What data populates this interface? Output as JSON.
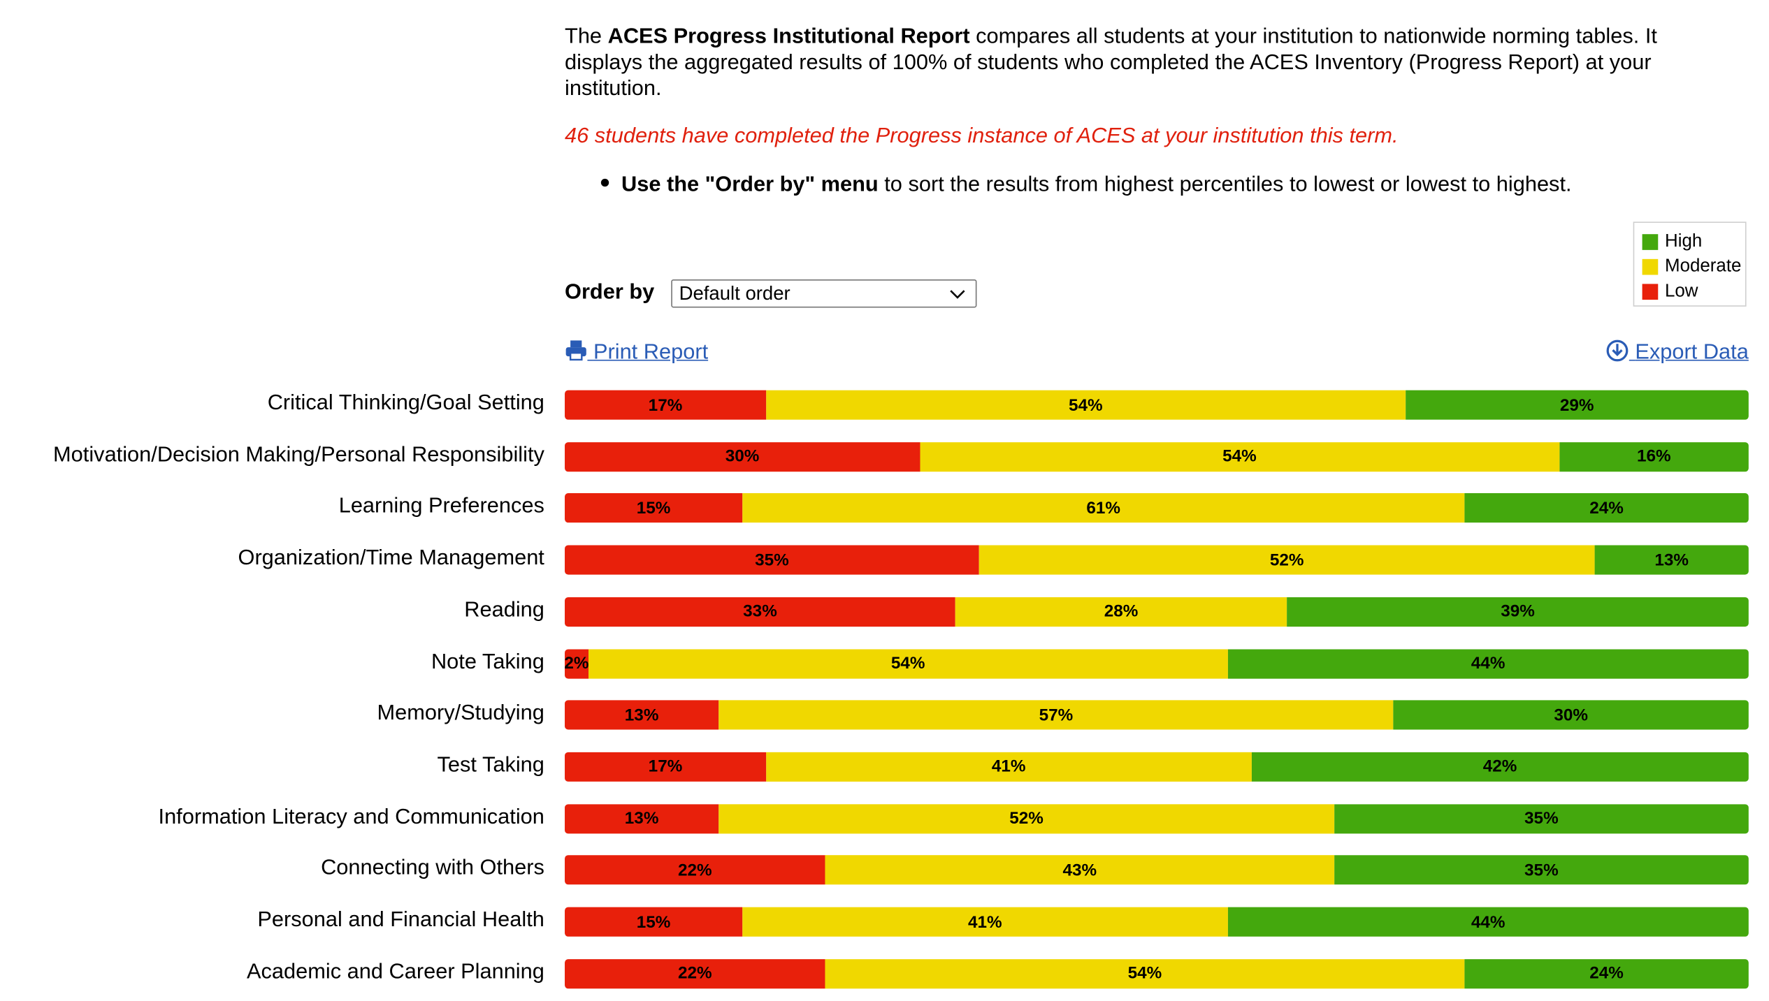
{
  "intro": {
    "prefix": "The ",
    "bold": "ACES Progress Institutional Report",
    "rest": " compares all students at your institution to nationwide norming tables. It displays the aggregated results of 100% of students who completed the ACES Inventory (Progress Report) at your institution."
  },
  "notice": "46 students have completed the Progress instance of ACES at your institution this term.",
  "tip": {
    "bold": "Use the \"Order by\" menu",
    "rest": " to sort the results from highest percentiles to lowest or lowest to highest."
  },
  "legend": {
    "items": [
      {
        "label": "High",
        "color": "#44a80d"
      },
      {
        "label": "Moderate",
        "color": "#f0d800"
      },
      {
        "label": "Low",
        "color": "#e8200b"
      }
    ]
  },
  "order_by": {
    "label": "Order by",
    "selected": "Default order"
  },
  "links": {
    "print": "Print Report",
    "export": "Export Data"
  },
  "chart_data": {
    "type": "bar",
    "stacked": true,
    "orientation": "horizontal",
    "categories": [
      "Critical Thinking/Goal Setting",
      "Motivation/Decision Making/Personal Responsibility",
      "Learning Preferences",
      "Organization/Time Management",
      "Reading",
      "Note Taking",
      "Memory/Studying",
      "Test Taking",
      "Information Literacy and Communication",
      "Connecting with Others",
      "Personal and Financial Health",
      "Academic and Career Planning"
    ],
    "series": [
      {
        "name": "Low",
        "color": "#e8200b",
        "values": [
          17,
          30,
          15,
          35,
          33,
          2,
          13,
          17,
          13,
          22,
          15,
          22
        ]
      },
      {
        "name": "Moderate",
        "color": "#f0d800",
        "values": [
          54,
          54,
          61,
          52,
          28,
          54,
          57,
          41,
          52,
          43,
          41,
          54
        ]
      },
      {
        "name": "High",
        "color": "#44a80d",
        "values": [
          29,
          16,
          24,
          13,
          39,
          44,
          30,
          42,
          35,
          35,
          44,
          24
        ]
      }
    ],
    "unit": "%"
  }
}
